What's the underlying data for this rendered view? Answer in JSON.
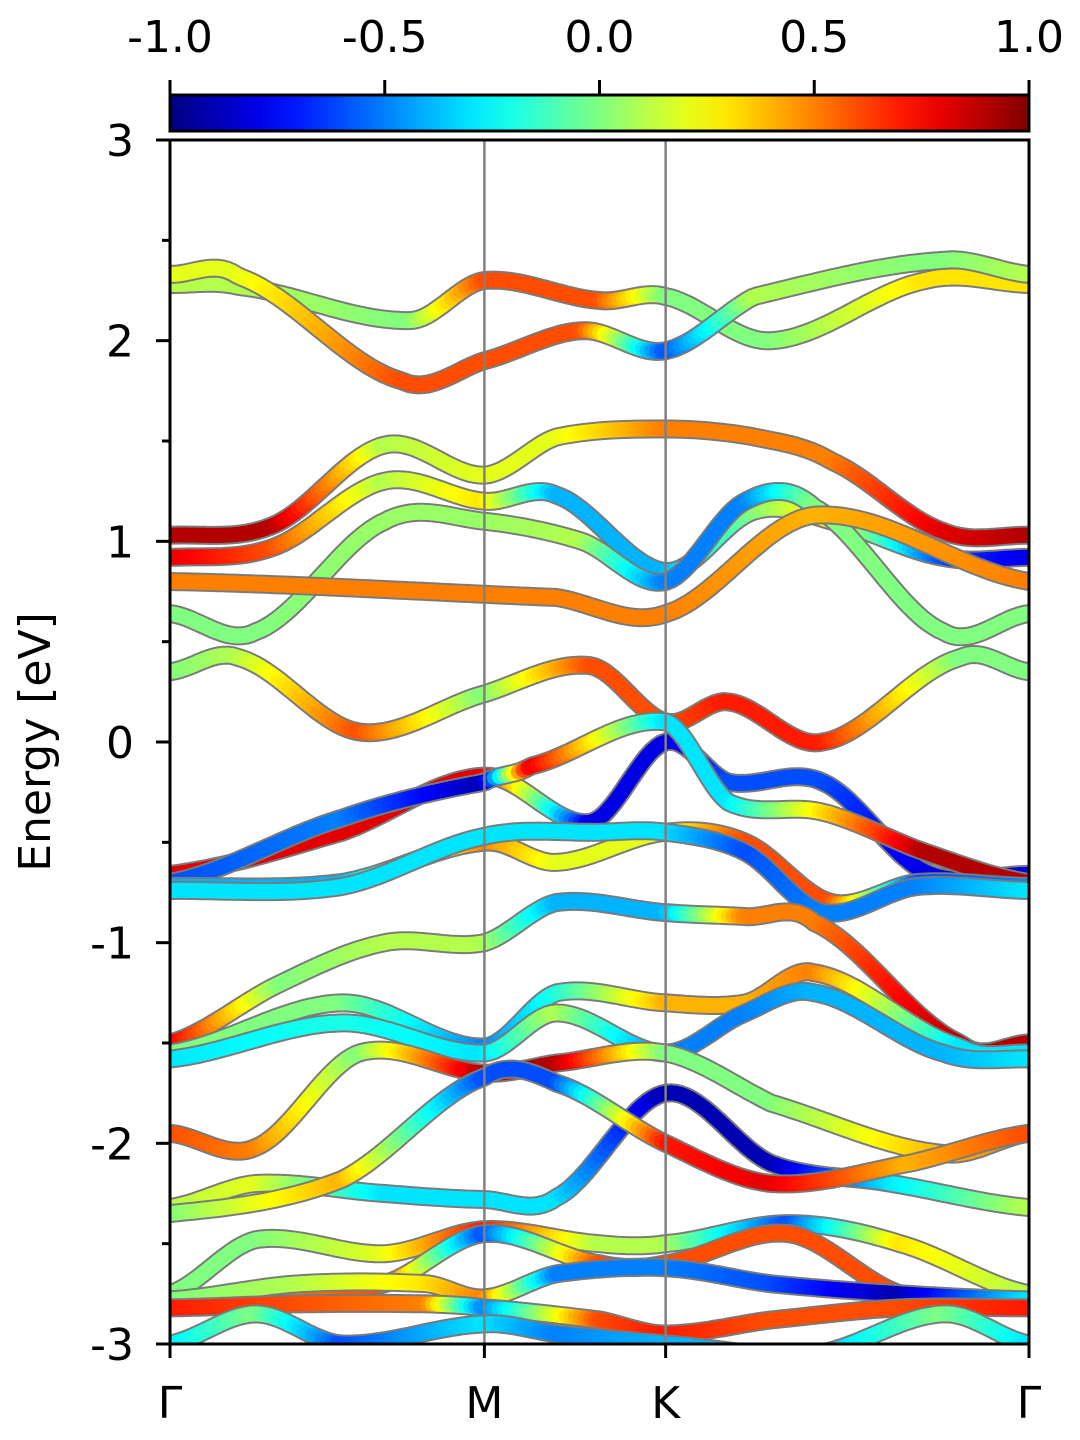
{
  "chart_data": {
    "type": "line",
    "title": "",
    "xlabel": "",
    "ylabel": "Energy [eV]",
    "ylim": [
      -3,
      3
    ],
    "y_ticks": [
      3,
      2,
      1,
      0,
      -1,
      -2,
      -3
    ],
    "y_tick_labels": [
      "3",
      "2",
      "1",
      "0",
      "-1",
      "-2",
      "-3"
    ],
    "kpath_x": [
      0,
      0.366,
      0.577,
      1.0
    ],
    "kpath_labels": [
      "Γ",
      "M",
      "K",
      "Γ"
    ],
    "colorbar": {
      "colormap": "jet",
      "range": [
        -1.0,
        1.0
      ],
      "ticks": [
        -1.0,
        -0.5,
        0.0,
        0.5,
        1.0
      ],
      "tick_labels": [
        "-1.0",
        "-0.5",
        "0.0",
        "0.5",
        "1.0"
      ],
      "placement": "top"
    },
    "series": [
      {
        "x": [
          0,
          0.08,
          0.28,
          0.366,
          0.5,
          0.577,
          0.7,
          0.88,
          1.0
        ],
        "y": [
          2.28,
          2.27,
          2.1,
          2.3,
          2.2,
          2.22,
          2.0,
          2.3,
          2.28
        ],
        "c": [
          0.1,
          0.1,
          0.0,
          0.6,
          0.6,
          0.0,
          0.0,
          0.3,
          0.3
        ]
      },
      {
        "x": [
          0,
          0.08,
          0.27,
          0.366,
          0.48,
          0.577,
          0.68,
          0.9,
          1.0
        ],
        "y": [
          2.33,
          2.32,
          1.8,
          1.9,
          2.05,
          1.95,
          2.22,
          2.4,
          2.33
        ],
        "c": [
          0.2,
          0.2,
          0.6,
          0.6,
          0.6,
          -0.6,
          0.1,
          0.0,
          0.1
        ]
      },
      {
        "x": [
          0,
          0.12,
          0.25,
          0.366,
          0.45,
          0.577,
          0.68,
          0.77,
          0.9,
          1.0
        ],
        "y": [
          0.92,
          0.97,
          1.3,
          1.2,
          1.23,
          0.85,
          1.15,
          1.1,
          0.92,
          0.92
        ],
        "c": [
          0.8,
          0.6,
          0.1,
          0.3,
          -0.4,
          -0.4,
          0.0,
          0.3,
          -0.6,
          -0.8
        ]
      },
      {
        "x": [
          0,
          0.12,
          0.25,
          0.366,
          0.45,
          0.577,
          0.68,
          0.77,
          0.9,
          1.0
        ],
        "y": [
          1.03,
          1.08,
          1.48,
          1.33,
          1.52,
          1.56,
          1.52,
          1.4,
          1.05,
          1.03
        ],
        "c": [
          0.9,
          0.9,
          0.1,
          0.2,
          0.2,
          0.5,
          0.5,
          0.5,
          0.8,
          0.9
        ]
      },
      {
        "x": [
          0,
          0.1,
          0.25,
          0.366,
          0.48,
          0.577,
          0.67,
          0.75,
          0.9,
          1.0
        ],
        "y": [
          0.64,
          0.55,
          1.1,
          1.1,
          1.0,
          0.8,
          1.2,
          1.17,
          0.55,
          0.64
        ],
        "c": [
          0.0,
          0.0,
          0.05,
          0.05,
          0.1,
          -0.5,
          -0.5,
          0.0,
          0.0,
          0.0
        ]
      },
      {
        "x": [
          0,
          0.45,
          0.577,
          0.75,
          1.0
        ],
        "y": [
          0.8,
          0.72,
          0.64,
          1.13,
          0.8
        ],
        "c": [
          0.5,
          0.5,
          0.5,
          0.4,
          0.5
        ]
      },
      {
        "x": [
          0,
          0.08,
          0.22,
          0.366,
          0.49,
          0.577,
          0.65,
          0.76,
          0.92,
          1.0
        ],
        "y": [
          0.35,
          0.42,
          0.05,
          0.24,
          0.38,
          0.1,
          0.2,
          0.0,
          0.42,
          0.35
        ],
        "c": [
          0.0,
          0.1,
          0.6,
          0.0,
          0.6,
          0.6,
          0.7,
          0.7,
          0.0,
          0.0
        ]
      },
      {
        "x": [
          0,
          0.2,
          0.366,
          0.49,
          0.577,
          0.65,
          0.76,
          0.88,
          1.0
        ],
        "y": [
          -0.66,
          -0.45,
          -0.17,
          -0.4,
          0.0,
          -0.2,
          -0.2,
          -0.65,
          -0.66
        ],
        "c": [
          0.8,
          0.8,
          0.8,
          -0.8,
          -0.8,
          -0.6,
          -0.6,
          -0.8,
          -0.8
        ]
      },
      {
        "x": [
          0,
          0.2,
          0.366,
          0.42,
          0.577,
          0.65,
          0.76,
          0.88,
          1.0
        ],
        "y": [
          -0.7,
          -0.38,
          -0.2,
          -0.12,
          0.1,
          -0.3,
          -0.35,
          -0.55,
          -0.7
        ],
        "c": [
          -0.6,
          -0.5,
          -0.9,
          0.8,
          -0.3,
          -0.3,
          0.3,
          0.9,
          0.9
        ]
      },
      {
        "x": [
          0,
          0.2,
          0.366,
          0.45,
          0.577,
          0.67,
          0.77,
          0.87,
          1.0
        ],
        "y": [
          -0.72,
          -0.7,
          -0.5,
          -0.6,
          -0.45,
          -0.5,
          -0.8,
          -0.7,
          -0.72
        ],
        "c": [
          -0.4,
          -0.4,
          0.5,
          0.2,
          0.2,
          0.6,
          0.6,
          -0.6,
          -0.5
        ]
      },
      {
        "x": [
          0,
          0.2,
          0.366,
          0.5,
          0.577,
          0.67,
          0.76,
          0.87,
          1.0
        ],
        "y": [
          -0.74,
          -0.72,
          -0.47,
          -0.45,
          -0.45,
          -0.55,
          -0.85,
          -0.72,
          -0.74
        ],
        "c": [
          -0.3,
          -0.3,
          -0.3,
          -0.3,
          -0.3,
          -0.6,
          -0.5,
          -0.5,
          -0.3
        ]
      },
      {
        "x": [
          0,
          0.13,
          0.25,
          0.366,
          0.45,
          0.577,
          0.67,
          0.75,
          0.92,
          1.0
        ],
        "y": [
          -1.5,
          -1.2,
          -1.0,
          -1.0,
          -0.8,
          -0.85,
          -0.87,
          -0.9,
          -1.5,
          -1.5
        ],
        "c": [
          0.8,
          0.0,
          0.1,
          0.1,
          -0.4,
          -0.4,
          0.5,
          0.5,
          0.9,
          0.9
        ]
      },
      {
        "x": [
          0,
          0.2,
          0.366,
          0.45,
          0.577,
          0.67,
          0.75,
          0.92,
          1.0
        ],
        "y": [
          -1.55,
          -1.3,
          -1.52,
          -1.25,
          -1.3,
          -1.3,
          -1.15,
          -1.52,
          -1.55
        ],
        "c": [
          0.0,
          0.0,
          -0.5,
          -0.2,
          0.4,
          0.4,
          0.5,
          -0.3,
          -0.3
        ]
      },
      {
        "x": [
          0,
          0.2,
          0.366,
          0.45,
          0.577,
          0.67,
          0.75,
          0.9,
          1.0
        ],
        "y": [
          -1.58,
          -1.4,
          -1.55,
          -1.35,
          -1.55,
          -1.35,
          -1.25,
          -1.55,
          -1.58
        ],
        "c": [
          -0.3,
          -0.2,
          -0.3,
          0.1,
          -0.5,
          -0.5,
          -0.4,
          -0.4,
          -0.3
        ]
      },
      {
        "x": [
          0,
          0.1,
          0.22,
          0.366,
          0.45,
          0.577,
          0.7,
          0.9,
          1.0
        ],
        "y": [
          -1.95,
          -2.02,
          -1.55,
          -1.65,
          -1.6,
          -1.55,
          -1.8,
          -2.05,
          -1.95
        ],
        "c": [
          0.6,
          0.5,
          0.0,
          0.9,
          0.9,
          0.0,
          0.0,
          0.4,
          0.5
        ]
      },
      {
        "x": [
          0,
          0.1,
          0.25,
          0.366,
          0.45,
          0.577,
          0.7,
          0.84,
          1.0
        ],
        "y": [
          -2.32,
          -2.2,
          -2.25,
          -2.28,
          -2.27,
          -1.75,
          -2.1,
          -2.2,
          -2.32
        ],
        "c": [
          0.1,
          0.2,
          -0.3,
          -0.3,
          -0.3,
          -0.9,
          -0.9,
          -0.3,
          0.1
        ]
      },
      {
        "x": [
          0,
          0.2,
          0.366,
          0.45,
          0.577,
          0.7,
          0.86,
          1.0
        ],
        "y": [
          -2.35,
          -2.18,
          -1.67,
          -1.7,
          -2.0,
          -2.2,
          -2.1,
          -1.95
        ],
        "c": [
          0.0,
          0.4,
          -0.6,
          -0.6,
          0.7,
          0.8,
          0.4,
          0.6
        ]
      },
      {
        "x": [
          0,
          0.1,
          0.25,
          0.366,
          0.5,
          0.577,
          0.72,
          0.85,
          1.0
        ],
        "y": [
          -2.75,
          -2.48,
          -2.55,
          -2.43,
          -2.5,
          -2.5,
          -2.4,
          -2.5,
          -2.75
        ],
        "c": [
          0.0,
          0.0,
          0.2,
          0.7,
          0.1,
          0.1,
          -0.6,
          0.3,
          0.1
        ]
      },
      {
        "x": [
          0,
          0.12,
          0.25,
          0.366,
          0.5,
          0.577,
          0.72,
          0.85,
          1.0
        ],
        "y": [
          -2.8,
          -2.75,
          -2.7,
          -2.45,
          -2.6,
          -2.6,
          -2.45,
          -2.75,
          -2.8
        ],
        "c": [
          0.6,
          0.5,
          0.6,
          -0.6,
          0.6,
          0.6,
          0.6,
          0.6,
          0.6
        ]
      },
      {
        "x": [
          0,
          0.15,
          0.3,
          0.366,
          0.45,
          0.577,
          0.7,
          0.85,
          1.0
        ],
        "y": [
          -2.78,
          -2.7,
          -2.7,
          -2.77,
          -2.65,
          -2.62,
          -2.7,
          -2.75,
          -2.78
        ],
        "c": [
          0.0,
          0.1,
          0.3,
          0.5,
          -0.5,
          -0.5,
          -0.6,
          -0.9,
          -0.3
        ]
      },
      {
        "x": [
          0,
          0.15,
          0.3,
          0.366,
          0.5,
          0.577,
          0.7,
          0.85,
          1.0
        ],
        "y": [
          -2.82,
          -2.8,
          -2.8,
          -2.82,
          -2.88,
          -2.95,
          -2.88,
          -2.82,
          -2.82
        ],
        "c": [
          0.7,
          0.6,
          0.5,
          -0.5,
          0.6,
          0.7,
          0.6,
          0.6,
          0.7
        ]
      },
      {
        "x": [
          0,
          0.1,
          0.2,
          0.366,
          0.45,
          0.577,
          0.75,
          0.9,
          1.0
        ],
        "y": [
          -3.0,
          -2.85,
          -3.0,
          -2.9,
          -2.95,
          -3.0,
          -3.05,
          -2.85,
          -3.0
        ],
        "c": [
          -0.3,
          0.0,
          -0.6,
          -0.3,
          -0.5,
          -0.4,
          -0.4,
          0.0,
          -0.3
        ]
      }
    ]
  }
}
